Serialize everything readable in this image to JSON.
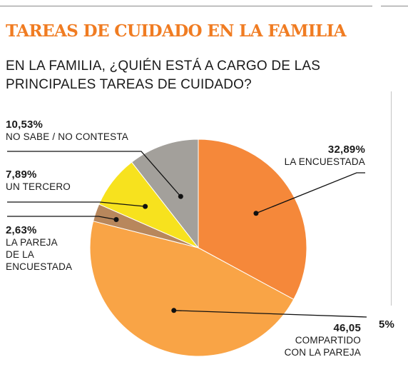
{
  "header": {
    "title": "TAREAS DE CUIDADO EN LA FAMILIA",
    "subtitle": "EN LA FAMILIA, ¿QUIÉN ESTÁ A CARGO DE LAS\nPRINCIPALES TAREAS DE CUIDADO?"
  },
  "side_label": "5%",
  "colors": {
    "title": "#f07c22",
    "la_encuestada": "#f5883a",
    "compartido": "#f9a446",
    "pareja": "#b8875c",
    "tercero": "#f7e21e",
    "no_sabe": "#a3a09b"
  },
  "chart_data": {
    "type": "pie",
    "title": "EN LA FAMILIA, ¿QUIÉN ESTÁ A CARGO DE LAS PRINCIPALES TAREAS DE CUIDADO?",
    "start": "12 o'clock, clockwise",
    "slices": [
      {
        "key": "la_encuestada",
        "pct_label": "32,89%",
        "label": "LA ENCUESTADA",
        "value": 32.89,
        "color": "#f5883a"
      },
      {
        "key": "compartido",
        "pct_label": "46,05",
        "label": "COMPARTIDO\nCON LA PAREJA",
        "value": 46.05,
        "color": "#f9a446"
      },
      {
        "key": "pareja",
        "pct_label": "2,63%",
        "label": "LA PAREJA\nDE LA\nENCUESTADA",
        "value": 2.63,
        "color": "#b8875c"
      },
      {
        "key": "tercero",
        "pct_label": "7,89%",
        "label": "UN TERCERO",
        "value": 7.89,
        "color": "#f7e21e"
      },
      {
        "key": "no_sabe",
        "pct_label": "10,53%",
        "label": "NO SABE / NO CONTESTA",
        "value": 10.53,
        "color": "#a3a09b"
      }
    ]
  }
}
